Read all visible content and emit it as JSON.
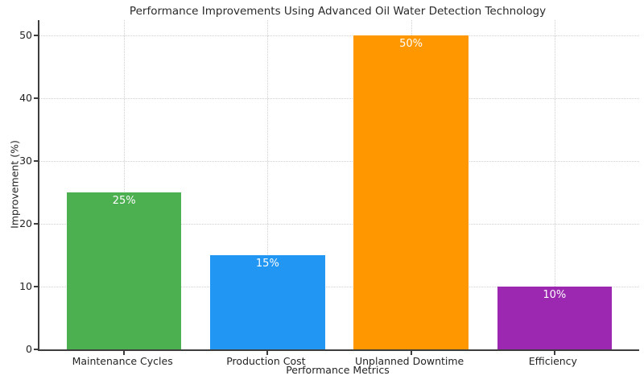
{
  "chart_data": {
    "type": "bar",
    "title": "Performance Improvements Using Advanced Oil Water Detection Technology",
    "xlabel": "Performance Metrics",
    "ylabel": "Improvement (%)",
    "categories": [
      "Maintenance Cycles",
      "Production Cost",
      "Unplanned Downtime",
      "Efficiency"
    ],
    "values": [
      25,
      15,
      50,
      10
    ],
    "bar_labels": [
      "25%",
      "15%",
      "50%",
      "10%"
    ],
    "bar_colors": [
      "#4CAF50",
      "#2196F3",
      "#FF9800",
      "#9C27B0"
    ],
    "bar_label_color": "#ffffff",
    "yticks": [
      0,
      10,
      20,
      30,
      40,
      50
    ],
    "ylim": [
      0,
      52.5
    ],
    "grid": true,
    "grid_color": "#cfcfcf",
    "spine_color": "#3d3d3d",
    "legend": "none"
  }
}
